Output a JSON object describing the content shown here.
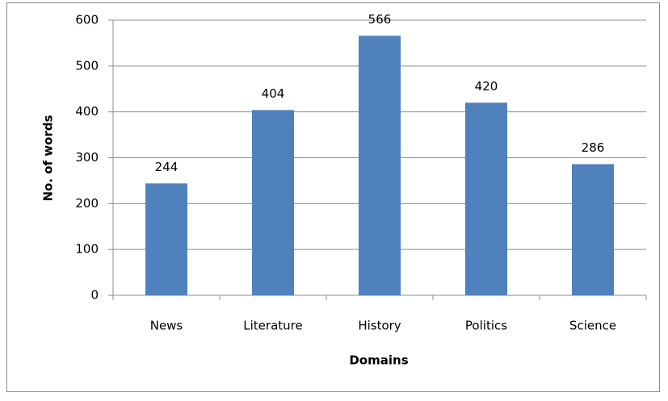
{
  "chart_data": {
    "type": "bar",
    "x_label": "Domains",
    "y_label": "No. of words",
    "categories": [
      "News",
      "Literature",
      "History",
      "Politics",
      "Science"
    ],
    "values": [
      244,
      404,
      566,
      420,
      286
    ],
    "color": "#4f81bd",
    "ylim": [
      0,
      600
    ],
    "yticks": [
      0,
      100,
      200,
      300,
      400,
      500,
      600
    ],
    "grid": true,
    "data_labels": true
  }
}
